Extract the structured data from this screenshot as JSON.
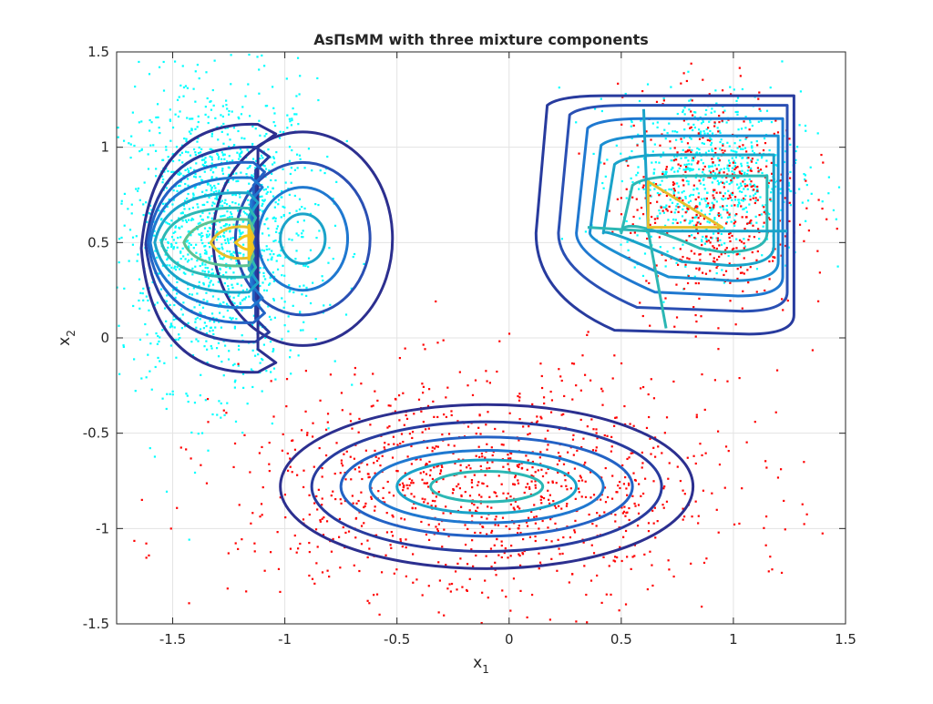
{
  "chart_data": {
    "type": "scatter",
    "title": "AsΠsMM with three mixture components",
    "xlabel": {
      "base": "x",
      "sub": "1"
    },
    "ylabel": {
      "base": "x",
      "sub": "2"
    },
    "xlim": [
      -1.75,
      1.5
    ],
    "ylim": [
      -1.5,
      1.5
    ],
    "xticks": [
      -1.5,
      -1,
      -0.5,
      0,
      0.5,
      1,
      1.5
    ],
    "xtick_labels": [
      "-1.5",
      "-1",
      "-0.5",
      "0",
      "0.5",
      "1",
      "1.5"
    ],
    "yticks": [
      -1.5,
      -1,
      -0.5,
      0,
      0.5,
      1,
      1.5
    ],
    "ytick_labels": [
      "-1.5",
      "-1",
      "-0.5",
      "0",
      "0.5",
      "1",
      "1.5"
    ],
    "grid": true,
    "colors": {
      "cyan_points": "#00ffff",
      "red_points": "#ff0000",
      "contour_low": "#2c2f8f",
      "contour_mid": "#1f8fd0",
      "contour_high": "#f5c518",
      "grid": "#e3e3e3",
      "axes": "#262626"
    },
    "point_clouds": [
      {
        "color": "cyan",
        "center": [
          -1.3,
          0.55
        ],
        "spread": [
          0.22,
          0.4
        ],
        "count": 1400
      },
      {
        "color": "cyan",
        "center": [
          0.9,
          0.85
        ],
        "spread": [
          0.2,
          0.22
        ],
        "count": 700
      },
      {
        "color": "red",
        "center": [
          0.9,
          0.7
        ],
        "spread": [
          0.2,
          0.3
        ],
        "count": 500
      },
      {
        "color": "red",
        "center": [
          -0.1,
          -0.8
        ],
        "spread": [
          0.55,
          0.3
        ],
        "count": 1100
      }
    ],
    "contour_sets": [
      {
        "component": "lower-gaussian",
        "shape": "ellipse",
        "center": [
          -0.1,
          -0.78
        ],
        "radii": [
          [
            0.25,
            0.08
          ],
          [
            0.4,
            0.14
          ],
          [
            0.52,
            0.19
          ],
          [
            0.65,
            0.26
          ],
          [
            0.78,
            0.34
          ],
          [
            0.92,
            0.43
          ]
        ]
      },
      {
        "component": "left-circle",
        "shape": "circle",
        "center": [
          -0.92,
          0.52
        ],
        "radii": [
          [
            0.1,
            0.13
          ],
          [
            0.2,
            0.27
          ],
          [
            0.3,
            0.4
          ],
          [
            0.4,
            0.56
          ]
        ]
      },
      {
        "component": "left-skewed",
        "shape": "left-boundary-family",
        "levels": [
          {
            "x0": -1.64,
            "xe": -1.12,
            "yt": 1.12,
            "yb": -0.18,
            "xr": -1.04
          },
          {
            "x0": -1.62,
            "xe": -1.13,
            "yt": 1.0,
            "yb": -0.02,
            "xr": -1.07
          },
          {
            "x0": -1.61,
            "xe": -1.14,
            "yt": 0.92,
            "yb": 0.08,
            "xr": -1.09
          },
          {
            "x0": -1.6,
            "xe": -1.15,
            "yt": 0.84,
            "yb": 0.16,
            "xr": -1.1
          },
          {
            "x0": -1.58,
            "xe": -1.16,
            "yt": 0.76,
            "yb": 0.24,
            "xr": -1.12
          },
          {
            "x0": -1.55,
            "xe": -1.16,
            "yt": 0.68,
            "yb": 0.32,
            "xr": -1.13
          },
          {
            "x0": -1.45,
            "xe": -1.16,
            "yt": 0.62,
            "yb": 0.38,
            "xr": -1.14
          },
          {
            "x0": -1.33,
            "xe": -1.16,
            "yt": 0.58,
            "yb": 0.42,
            "xr": -1.14
          },
          {
            "x0": -1.22,
            "xe": -1.16,
            "yt": 0.53,
            "yb": 0.47,
            "xr": -1.15
          }
        ]
      },
      {
        "component": "right-skewed",
        "shape": "right-boundary-family",
        "levels": [
          {
            "xl": 0.12,
            "xr": 1.27,
            "yt": 1.27,
            "yb": 0.02
          },
          {
            "xl": 0.22,
            "xr": 1.24,
            "yt": 1.22,
            "yb": 0.14
          },
          {
            "xl": 0.3,
            "xr": 1.22,
            "yt": 1.15,
            "yb": 0.22
          },
          {
            "xl": 0.36,
            "xr": 1.2,
            "yt": 1.06,
            "yb": 0.3
          },
          {
            "xl": 0.42,
            "xr": 1.18,
            "yt": 0.96,
            "yb": 0.38
          },
          {
            "xl": 0.5,
            "xr": 1.15,
            "yt": 0.85,
            "yb": 0.45
          }
        ],
        "ridge": {
          "x": 0.6,
          "y": 0.56
        }
      }
    ]
  }
}
